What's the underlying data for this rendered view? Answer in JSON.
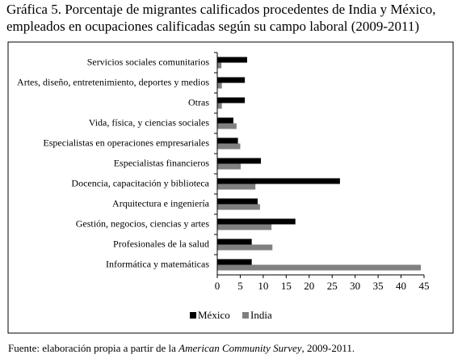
{
  "chart_data": {
    "type": "hbar",
    "title_lines": [
      "Gráfica 5. Porcentaje de migrantes calificados procedentes de India y México,",
      "empleados en ocupaciones calificadas según su campo laboral (2009-2011)"
    ],
    "categories": [
      "Servicios sociales comunitarios",
      "Artes, diseño, entretenimiento, deportes y medios",
      "Otras",
      "Vida, física, y ciencias sociales",
      "Especialistas en operaciones empresariales",
      "Especialistas financieros",
      "Docencia, capacitación y biblioteca",
      "Arquitectura e ingeniería",
      "Gestión, negocios, ciencias y artes",
      "Profesionales de la salud",
      "Informática y matemáticas"
    ],
    "series": [
      {
        "name": "México",
        "color": "#000000",
        "values": [
          6.5,
          6.0,
          6.0,
          3.5,
          4.5,
          9.5,
          26.7,
          8.8,
          17.0,
          7.5,
          7.5
        ]
      },
      {
        "name": "India",
        "color": "#808080",
        "values": [
          0.9,
          1.0,
          1.0,
          4.2,
          5.0,
          5.1,
          8.3,
          9.3,
          11.8,
          12.0,
          44.3
        ]
      }
    ],
    "xlim": [
      0,
      45
    ],
    "xticks": [
      0,
      5,
      10,
      15,
      20,
      25,
      30,
      35,
      40,
      45
    ],
    "source": {
      "prefix": "Fuente: elaboración propia a partir de la ",
      "italic": "American Community Survey",
      "suffix": ", 2009-2011."
    }
  }
}
